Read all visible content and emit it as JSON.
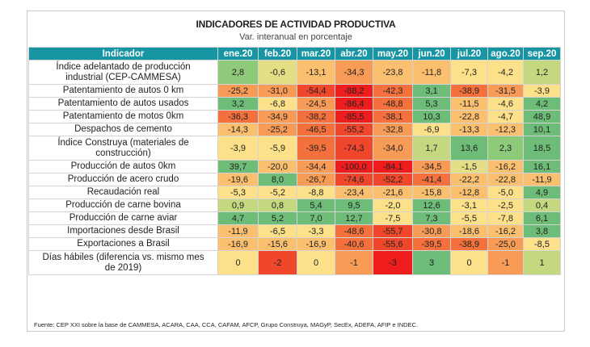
{
  "chart_data": {
    "type": "table",
    "title": "INDICADORES DE ACTIVIDAD PRODUCTIVA",
    "subtitle": "Var. interanual en porcentaje",
    "row_header": "Indicador",
    "columns": [
      "ene.20",
      "feb.20",
      "mar.20",
      "abr.20",
      "may.20",
      "jun.20",
      "jul.20",
      "ago.20",
      "sep.20"
    ],
    "rows": [
      {
        "label": "Índice adelantado de producción industrial (CEP-CAMMESA)",
        "two_line": true,
        "values": [
          "2,8",
          "-0,6",
          "-13,1",
          "-34,3",
          "-23,8",
          "-11,8",
          "-7,3",
          "-4,2",
          "1,2"
        ]
      },
      {
        "label": "Patentamiento de autos 0 km",
        "two_line": false,
        "values": [
          "-25,2",
          "-31,0",
          "-54,4",
          "-88,2",
          "-42,3",
          "3,1",
          "-38,9",
          "-31,5",
          "-3,9"
        ]
      },
      {
        "label": "Patentamiento de autos usados",
        "two_line": false,
        "values": [
          "3,2",
          "-6,8",
          "-24,5",
          "-86,4",
          "-48,8",
          "5,3",
          "-11,5",
          "-4,6",
          "4,2"
        ]
      },
      {
        "label": "Patentamiento de motos 0km",
        "two_line": false,
        "values": [
          "-36,3",
          "-34,9",
          "-38,2",
          "-85,5",
          "-38,1",
          "10,3",
          "-22,8",
          "-4,7",
          "48,9"
        ]
      },
      {
        "label": "Despachos de cemento",
        "two_line": false,
        "values": [
          "-14,3",
          "-25,2",
          "-46,5",
          "-55,2",
          "-32,8",
          "-6,9",
          "-13,3",
          "-12,3",
          "10,1"
        ]
      },
      {
        "label": "Índice Construya (materiales de construcción)",
        "two_line": true,
        "values": [
          "-3,9",
          "-5,9",
          "-39,5",
          "-74,3",
          "-34,0",
          "1,7",
          "13,6",
          "2,3",
          "18,5"
        ]
      },
      {
        "label": "Producción de autos 0km",
        "two_line": false,
        "values": [
          "39,7",
          "-20,0",
          "-34,4",
          "-100,0",
          "-84,1",
          "-34,5",
          "-1,5",
          "-16,2",
          "16,1"
        ]
      },
      {
        "label": "Producción de acero crudo",
        "two_line": false,
        "values": [
          "-19,6",
          "8,0",
          "-26,7",
          "-74,6",
          "-52,2",
          "-41,4",
          "-22,2",
          "-22,8",
          "-11,9"
        ]
      },
      {
        "label": "Recaudación real",
        "two_line": false,
        "values": [
          "-5,3",
          "-5,2",
          "-8,8",
          "-23,4",
          "-21,6",
          "-15,8",
          "-12,8",
          "-5,0",
          "4,9"
        ]
      },
      {
        "label": "Producción de carne bovina",
        "two_line": false,
        "values": [
          "0,9",
          "0,8",
          "5,4",
          "9,5",
          "-2,0",
          "12,6",
          "-3,1",
          "-2,5",
          "0,4"
        ]
      },
      {
        "label": "Producción de carne aviar",
        "two_line": false,
        "values": [
          "4,7",
          "5,2",
          "7,0",
          "12,7",
          "-7,5",
          "7,3",
          "-5,5",
          "-7,8",
          "6,1"
        ]
      },
      {
        "label": "Importaciones desde Brasil",
        "two_line": false,
        "values": [
          "-11,9",
          "-6,5",
          "-3,3",
          "-48,6",
          "-55,7",
          "-30,8",
          "-18,6",
          "-16,2",
          "3,8"
        ]
      },
      {
        "label": "Exportaciones a Brasil",
        "two_line": false,
        "values": [
          "-16,9",
          "-15,6",
          "-16,9",
          "-40,6",
          "-55,6",
          "-39,5",
          "-38,9",
          "-25,0",
          "-8,5"
        ]
      },
      {
        "label": "Días hábiles (diferencia vs. mismo mes de 2019)",
        "two_line": true,
        "values": [
          "0",
          "-2",
          "0",
          "-1",
          "-3",
          "3",
          "0",
          "-1",
          "1"
        ]
      }
    ],
    "source": "Fuente: CEP XXI sobre la base de CAMMESA, ACARA, CAA, CCA, CAFAM, AFCP, Grupo Construya, MAGyP, SecEx, ADEFA, AFIP e INDEC."
  },
  "colors": {
    "header_bg": "#1795a3",
    "scale": [
      "#ee1c1c",
      "#f0462b",
      "#f4703c",
      "#f89b56",
      "#fbc06f",
      "#fde08a",
      "#e4df86",
      "#c4d97f",
      "#8fc97a",
      "#6dbd78"
    ]
  }
}
